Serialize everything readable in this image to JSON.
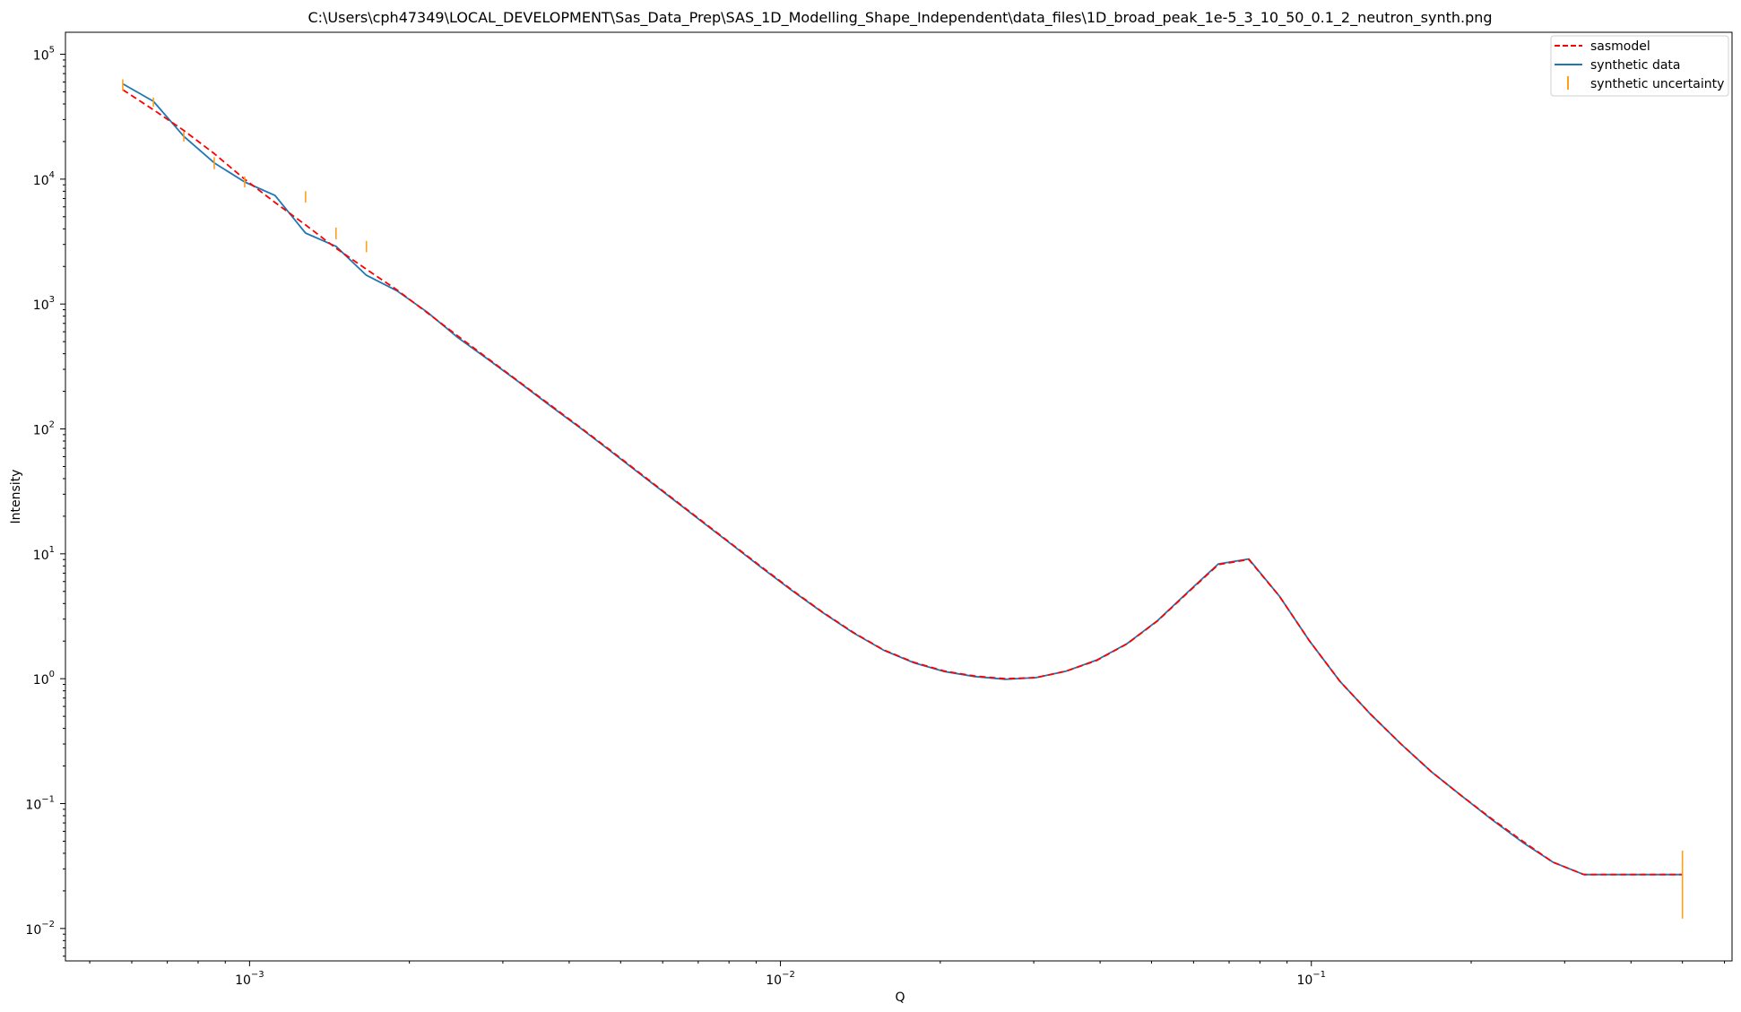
{
  "chart_data": {
    "type": "line",
    "title": "C:\\Users\\cph47349\\LOCAL_DEVELOPMENT\\Sas_Data_Prep\\SAS_1D_Modelling_Shape_Independent\\data_files\\1D_broad_peak_1e-5_3_10_50_0.1_2_neutron_synth.png",
    "xlabel": "Q",
    "ylabel": "Intensity",
    "xscale": "log",
    "yscale": "log",
    "xlim": [
      0.00045,
      0.62
    ],
    "ylim": [
      0.0055,
      150000
    ],
    "legend_position": "top-right",
    "grid": false,
    "x_ticks": [
      {
        "value": 0.001,
        "base": "10",
        "exp": "−3"
      },
      {
        "value": 0.01,
        "base": "10",
        "exp": "−2"
      },
      {
        "value": 0.1,
        "base": "10",
        "exp": "−1"
      }
    ],
    "y_ticks": [
      {
        "value": 100000,
        "base": "10",
        "exp": "5"
      },
      {
        "value": 10000,
        "base": "10",
        "exp": "4"
      },
      {
        "value": 1000,
        "base": "10",
        "exp": "3"
      },
      {
        "value": 100,
        "base": "10",
        "exp": "2"
      },
      {
        "value": 10,
        "base": "10",
        "exp": "1"
      },
      {
        "value": 1,
        "base": "10",
        "exp": "0"
      },
      {
        "value": 0.1,
        "base": "10",
        "exp": "−1"
      },
      {
        "value": 0.01,
        "base": "10",
        "exp": "−2"
      }
    ],
    "x": [
      0.000577,
      0.000659,
      0.000752,
      0.000858,
      0.000979,
      0.001117,
      0.001275,
      0.001455,
      0.00166,
      0.001894,
      0.002162,
      0.002467,
      0.002815,
      0.003212,
      0.003665,
      0.004182,
      0.004772,
      0.005445,
      0.006213,
      0.00709,
      0.00809,
      0.009231,
      0.010533,
      0.012019,
      0.013714,
      0.015649,
      0.017856,
      0.020375,
      0.023249,
      0.026528,
      0.03027,
      0.03454,
      0.039412,
      0.044972,
      0.051315,
      0.058554,
      0.066813,
      0.076238,
      0.086992,
      0.099263,
      0.113265,
      0.129243,
      0.147473,
      0.168276,
      0.192013,
      0.219098,
      0.25,
      0.285,
      0.326,
      0.372,
      0.424,
      0.484,
      0.5
    ],
    "series": [
      {
        "name": "sasmodel",
        "color": "#ff0000",
        "style": "dashed",
        "values": [
          52000,
          36000,
          24500,
          16000,
          10000,
          6500,
          4300,
          2800,
          1900,
          1300,
          850,
          555,
          365,
          240,
          158,
          104,
          68,
          44,
          28.5,
          18.5,
          12,
          7.8,
          5.1,
          3.4,
          2.35,
          1.7,
          1.35,
          1.15,
          1.05,
          1.0,
          1.02,
          1.15,
          1.4,
          1.9,
          2.9,
          4.9,
          8.2,
          9.0,
          4.6,
          2.0,
          0.95,
          0.52,
          0.3,
          0.18,
          0.115,
          0.075,
          0.05,
          0.034,
          0.027,
          0.027,
          0.027,
          0.027,
          0.027
        ]
      },
      {
        "name": "synthetic data",
        "color": "#1f77b4",
        "style": "solid",
        "values": [
          58000,
          42000,
          22000,
          13500,
          9500,
          7400,
          3700,
          2900,
          1700,
          1280,
          860,
          540,
          360,
          238,
          156,
          103,
          67,
          43.5,
          28.2,
          18.3,
          11.9,
          7.7,
          5.05,
          3.38,
          2.33,
          1.69,
          1.34,
          1.14,
          1.04,
          0.99,
          1.02,
          1.15,
          1.41,
          1.91,
          2.92,
          4.95,
          8.3,
          9.1,
          4.6,
          2.0,
          0.95,
          0.52,
          0.3,
          0.18,
          0.115,
          0.074,
          0.049,
          0.034,
          0.027,
          0.027,
          0.027,
          0.027,
          0.027
        ]
      }
    ],
    "uncertainty": {
      "name": "synthetic uncertainty",
      "color": "#ff9f1c",
      "bars": [
        {
          "x": 0.000577,
          "low": 51000,
          "high": 63000
        },
        {
          "x": 0.000659,
          "low": 38000,
          "high": 45000
        },
        {
          "x": 0.000752,
          "low": 20000,
          "high": 24000
        },
        {
          "x": 0.000858,
          "low": 12000,
          "high": 15000
        },
        {
          "x": 0.000979,
          "low": 8600,
          "high": 10500
        },
        {
          "x": 0.001275,
          "low": 6500,
          "high": 8000
        },
        {
          "x": 0.001455,
          "low": 3300,
          "high": 4100
        },
        {
          "x": 0.00166,
          "low": 2600,
          "high": 3200
        },
        {
          "x": 0.5,
          "low": 0.012,
          "high": 0.042
        }
      ]
    }
  },
  "legend": {
    "items": [
      {
        "label": "sasmodel",
        "color": "#ff0000",
        "kind": "dashed"
      },
      {
        "label": "synthetic data",
        "color": "#1f77b4",
        "kind": "solid"
      },
      {
        "label": "synthetic uncertainty",
        "color": "#ff9f1c",
        "kind": "errorbar"
      }
    ]
  }
}
